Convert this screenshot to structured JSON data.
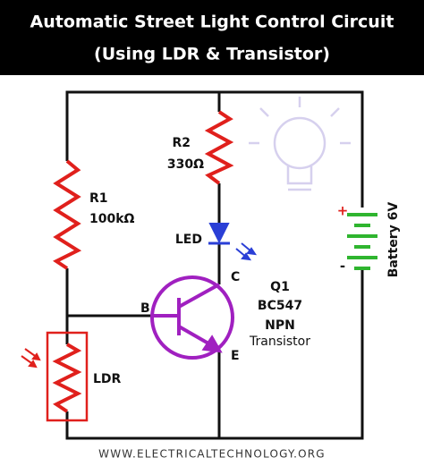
{
  "header": {
    "title": "Automatic Street Light Control Circuit",
    "subtitle": "(Using LDR & Transistor)"
  },
  "components": {
    "r2": {
      "name": "R2",
      "value": "330Ω"
    },
    "r1": {
      "name": "R1",
      "value": "100kΩ"
    },
    "led": {
      "name": "LED"
    },
    "transistor": {
      "collector": "C",
      "base": "B",
      "emitter": "E",
      "name": "Q1",
      "model": "BC547",
      "kind": "NPN",
      "type": "Transistor"
    },
    "ldr": {
      "name": "LDR"
    },
    "battery": {
      "plus": "+",
      "minus": "-",
      "name": "Battery 6V"
    }
  },
  "footer": {
    "url": "WWW.ELECTRICALTECHNOLOGY.ORG"
  }
}
